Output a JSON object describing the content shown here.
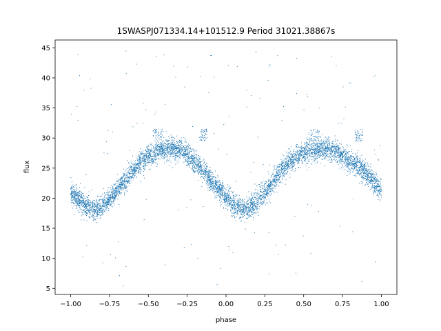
{
  "chart_data": {
    "type": "scatter",
    "title": "1SWASPJ071334.14+101512.9 Period 31021.38867s",
    "xlabel": "phase",
    "ylabel": "flux",
    "xlim": [
      -1.1,
      1.1
    ],
    "ylim": [
      4.0,
      46.3
    ],
    "xticks": [
      -1.0,
      -0.75,
      -0.5,
      -0.25,
      0.0,
      0.25,
      0.5,
      0.75,
      1.0
    ],
    "xtick_labels": [
      "−1.00",
      "−0.75",
      "−0.50",
      "−0.25",
      "0.00",
      "0.25",
      "0.50",
      "0.75",
      "1.00"
    ],
    "yticks": [
      5,
      10,
      15,
      20,
      25,
      30,
      35,
      40,
      45
    ],
    "ytick_labels": [
      "5",
      "10",
      "15",
      "20",
      "25",
      "30",
      "35",
      "40",
      "45"
    ],
    "grid": false,
    "series": [
      {
        "color": "#1f77b4",
        "marker_size_desc": "tiny points",
        "phase_range": [
          -1.0,
          1.0
        ],
        "model_curve": {
          "description": "quasi-sinusoidal light curve, period repeats every 1.0 in phase",
          "x": [
            -1.0,
            -0.95,
            -0.9,
            -0.85,
            -0.8,
            -0.75,
            -0.7,
            -0.65,
            -0.6,
            -0.55,
            -0.5,
            -0.45,
            -0.4,
            -0.35,
            -0.3,
            -0.25,
            -0.2,
            -0.15,
            -0.1,
            -0.05,
            0.0,
            0.05,
            0.1,
            0.15,
            0.2,
            0.25,
            0.3,
            0.35,
            0.4,
            0.45,
            0.5,
            0.55,
            0.6,
            0.65,
            0.7,
            0.75,
            0.8,
            0.85,
            0.9,
            0.95,
            1.0
          ],
          "y": [
            21.0,
            19.8,
            18.6,
            18.0,
            18.6,
            19.8,
            21.4,
            23.0,
            24.6,
            25.9,
            26.9,
            27.6,
            28.0,
            28.2,
            28.0,
            27.2,
            25.9,
            24.5,
            23.0,
            21.6,
            20.2,
            19.0,
            18.0,
            18.3,
            19.5,
            21.0,
            22.8,
            24.4,
            25.8,
            26.8,
            27.5,
            27.9,
            28.1,
            28.2,
            27.9,
            27.0,
            26.2,
            25.3,
            24.2,
            22.8,
            21.2
          ]
        },
        "scatter_sigma": 0.9,
        "approx_point_count": 6000,
        "outlier_clusters": [
          {
            "x": [
              -0.47,
              -0.4
            ],
            "y": [
              29.5,
              31.5
            ]
          },
          {
            "x": [
              -0.17,
              -0.12
            ],
            "y": [
              29.5,
              31.5
            ]
          },
          {
            "x": [
              0.53,
              0.6
            ],
            "y": [
              29.5,
              31.5
            ]
          },
          {
            "x": [
              0.83,
              0.88
            ],
            "y": [
              29.5,
              31.5
            ]
          }
        ],
        "outlier_y_range": [
          5,
          44.5
        ]
      }
    ]
  }
}
